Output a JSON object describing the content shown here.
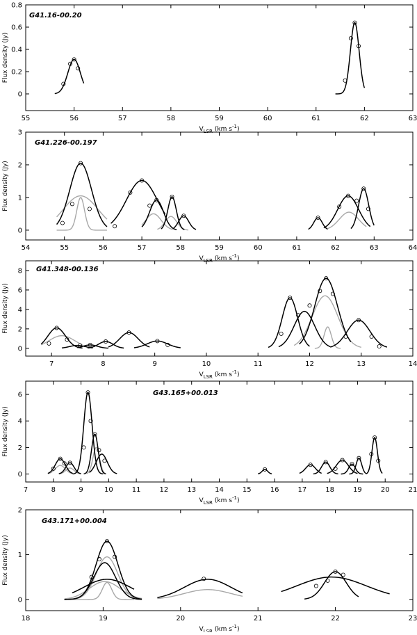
{
  "figure": {
    "ylabel": "Flux density (Jy)",
    "xlabel_main": "V",
    "xlabel_sub": "LSR",
    "xlabel_unit": "(km s",
    "xlabel_exp": "-1",
    "xlabel_close": ")"
  },
  "chart_data": [
    {
      "type": "line",
      "title": "G41.16-00.20",
      "xlim": [
        55,
        63
      ],
      "ylim": [
        -0.15,
        0.8
      ],
      "xticks": [
        55,
        56,
        57,
        58,
        59,
        60,
        61,
        62,
        63
      ],
      "yticks": [
        0,
        0.2,
        0.4,
        0.6,
        0.8
      ],
      "yticklabels": [
        "0",
        "0.2",
        "0.4",
        "0.6",
        "0.8"
      ],
      "total": [
        {
          "center": 56.0,
          "amp": 0.31,
          "sigma": 0.13,
          "range": [
            55.6,
            56.2
          ]
        },
        {
          "center": 61.8,
          "amp": 0.64,
          "sigma": 0.09,
          "range": [
            61.4,
            62.0
          ]
        }
      ],
      "components": [],
      "points": [
        [
          55.78,
          0.09
        ],
        [
          55.92,
          0.27
        ],
        [
          56.0,
          0.31
        ],
        [
          56.08,
          0.23
        ],
        [
          61.6,
          0.12
        ],
        [
          61.72,
          0.5
        ],
        [
          61.8,
          0.64
        ],
        [
          61.88,
          0.43
        ]
      ]
    },
    {
      "type": "line",
      "title": "G41.226-00.197",
      "xlim": [
        54,
        64
      ],
      "ylim": [
        -0.3,
        3
      ],
      "xticks": [
        54,
        55,
        56,
        57,
        58,
        59,
        60,
        61,
        62,
        63,
        64
      ],
      "yticks": [
        0,
        1,
        2,
        3
      ],
      "yticklabels": [
        "0",
        "1",
        "2",
        "3"
      ],
      "total": [
        {
          "center": 55.42,
          "amp": 2.05,
          "sigma": 0.28,
          "range": [
            54.8,
            56.1
          ]
        },
        {
          "center": 57.0,
          "amp": 1.52,
          "sigma": 0.4,
          "range": [
            56.2,
            57.6
          ]
        },
        {
          "center": 57.38,
          "amp": 0.92,
          "sigma": 0.18,
          "range": [
            57.0,
            57.9
          ]
        },
        {
          "center": 57.78,
          "amp": 1.02,
          "sigma": 0.11,
          "range": [
            57.5,
            58.1
          ]
        },
        {
          "center": 58.08,
          "amp": 0.44,
          "sigma": 0.13,
          "range": [
            57.8,
            58.4
          ]
        },
        {
          "center": 61.55,
          "amp": 0.38,
          "sigma": 0.11,
          "range": [
            61.3,
            61.8
          ]
        },
        {
          "center": 62.33,
          "amp": 1.05,
          "sigma": 0.27,
          "range": [
            61.7,
            62.9
          ]
        },
        {
          "center": 62.73,
          "amp": 1.27,
          "sigma": 0.13,
          "range": [
            62.4,
            63.0
          ]
        }
      ],
      "components": [
        {
          "center": 55.42,
          "amp": 1.05,
          "sigma": 0.45,
          "range": [
            54.8,
            56.1
          ]
        },
        {
          "center": 55.42,
          "amp": 1.0,
          "sigma": 0.1,
          "range": [
            54.8,
            56.1
          ]
        },
        {
          "center": 57.3,
          "amp": 0.5,
          "sigma": 0.2,
          "range": [
            57.0,
            57.8
          ]
        },
        {
          "center": 57.75,
          "amp": 0.42,
          "sigma": 0.15,
          "range": [
            57.4,
            58.2
          ]
        },
        {
          "center": 62.35,
          "amp": 0.55,
          "sigma": 0.25,
          "range": [
            61.8,
            62.8
          ]
        }
      ],
      "points": [
        [
          54.95,
          0.22
        ],
        [
          55.2,
          0.8
        ],
        [
          55.42,
          2.05
        ],
        [
          55.65,
          0.65
        ],
        [
          56.3,
          0.12
        ],
        [
          56.7,
          1.15
        ],
        [
          57.0,
          1.52
        ],
        [
          57.2,
          0.75
        ],
        [
          57.38,
          0.92
        ],
        [
          57.78,
          1.02
        ],
        [
          58.08,
          0.44
        ],
        [
          61.55,
          0.38
        ],
        [
          62.1,
          0.72
        ],
        [
          62.33,
          1.05
        ],
        [
          62.55,
          0.9
        ],
        [
          62.73,
          1.27
        ],
        [
          62.85,
          0.65
        ]
      ]
    },
    {
      "type": "line",
      "title": "G41.348-00.136",
      "xlim": [
        6.5,
        14
      ],
      "ylim": [
        -0.8,
        9
      ],
      "xticks": [
        7,
        8,
        9,
        10,
        11,
        12,
        13,
        14
      ],
      "yticks": [
        0,
        2,
        4,
        6,
        8
      ],
      "yticklabels": [
        "0",
        "2",
        "4",
        "6",
        "8"
      ],
      "total": [
        {
          "center": 7.1,
          "amp": 2.1,
          "sigma": 0.17,
          "range": [
            6.8,
            7.6
          ]
        },
        {
          "center": 7.5,
          "amp": 0.3,
          "sigma": 0.15,
          "range": [
            7.2,
            7.8
          ]
        },
        {
          "center": 7.75,
          "amp": 0.35,
          "sigma": 0.14,
          "range": [
            7.5,
            8.1
          ]
        },
        {
          "center": 8.05,
          "amp": 0.7,
          "sigma": 0.14,
          "range": [
            7.7,
            8.4
          ]
        },
        {
          "center": 8.5,
          "amp": 1.62,
          "sigma": 0.18,
          "range": [
            8.1,
            8.9
          ]
        },
        {
          "center": 9.05,
          "amp": 0.75,
          "sigma": 0.2,
          "range": [
            8.6,
            9.5
          ]
        },
        {
          "center": 11.62,
          "amp": 5.2,
          "sigma": 0.15,
          "range": [
            11.2,
            12.0
          ]
        },
        {
          "center": 11.9,
          "amp": 3.8,
          "sigma": 0.2,
          "range": [
            11.4,
            12.4
          ]
        },
        {
          "center": 12.32,
          "amp": 7.2,
          "sigma": 0.22,
          "range": [
            11.8,
            12.8
          ]
        },
        {
          "center": 12.95,
          "amp": 2.9,
          "sigma": 0.22,
          "range": [
            12.4,
            13.5
          ]
        }
      ],
      "components": [
        {
          "center": 7.2,
          "amp": 1.3,
          "sigma": 0.25,
          "range": [
            6.8,
            7.6
          ]
        },
        {
          "center": 12.3,
          "amp": 5.4,
          "sigma": 0.25,
          "range": [
            11.7,
            13.0
          ]
        },
        {
          "center": 12.35,
          "amp": 2.2,
          "sigma": 0.07,
          "range": [
            12.1,
            12.6
          ]
        }
      ],
      "points": [
        [
          6.95,
          0.5
        ],
        [
          7.1,
          2.1
        ],
        [
          7.3,
          0.9
        ],
        [
          7.55,
          0.3
        ],
        [
          7.75,
          0.35
        ],
        [
          8.05,
          0.7
        ],
        [
          8.5,
          1.62
        ],
        [
          9.05,
          0.75
        ],
        [
          9.25,
          0.35
        ],
        [
          11.45,
          1.5
        ],
        [
          11.62,
          5.2
        ],
        [
          11.78,
          3.4
        ],
        [
          12.0,
          4.4
        ],
        [
          12.2,
          5.9
        ],
        [
          12.32,
          7.2
        ],
        [
          12.45,
          5.6
        ],
        [
          12.7,
          1.2
        ],
        [
          12.95,
          2.9
        ],
        [
          13.2,
          1.2
        ],
        [
          13.35,
          0.2
        ]
      ]
    },
    {
      "type": "line",
      "title": "G43.165+00.013",
      "xlim": [
        7,
        21
      ],
      "ylim": [
        -0.6,
        7
      ],
      "xticks": [
        7,
        8,
        9,
        10,
        11,
        12,
        13,
        14,
        15,
        16,
        17,
        18,
        19,
        20,
        21
      ],
      "yticks": [
        0,
        2,
        4,
        6
      ],
      "yticklabels": [
        "0",
        "2",
        "4",
        "6"
      ],
      "total": [
        {
          "center": 8.25,
          "amp": 1.15,
          "sigma": 0.18,
          "range": [
            7.8,
            8.7
          ]
        },
        {
          "center": 8.6,
          "amp": 0.85,
          "sigma": 0.15,
          "range": [
            8.2,
            9.0
          ]
        },
        {
          "center": 9.25,
          "amp": 6.15,
          "sigma": 0.15,
          "range": [
            8.7,
            9.8
          ]
        },
        {
          "center": 9.5,
          "amp": 3.0,
          "sigma": 0.12,
          "range": [
            9.1,
            9.9
          ]
        },
        {
          "center": 9.75,
          "amp": 1.5,
          "sigma": 0.2,
          "range": [
            9.3,
            10.3
          ]
        },
        {
          "center": 15.65,
          "amp": 0.35,
          "sigma": 0.1,
          "range": [
            15.4,
            15.9
          ]
        },
        {
          "center": 17.3,
          "amp": 0.7,
          "sigma": 0.18,
          "range": [
            16.9,
            17.7
          ]
        },
        {
          "center": 17.85,
          "amp": 0.9,
          "sigma": 0.15,
          "range": [
            17.4,
            18.3
          ]
        },
        {
          "center": 18.45,
          "amp": 1.05,
          "sigma": 0.22,
          "range": [
            17.9,
            19.0
          ]
        },
        {
          "center": 18.8,
          "amp": 0.75,
          "sigma": 0.12,
          "range": [
            18.4,
            19.2
          ]
        },
        {
          "center": 19.05,
          "amp": 1.2,
          "sigma": 0.1,
          "range": [
            18.7,
            19.3
          ]
        },
        {
          "center": 19.62,
          "amp": 2.75,
          "sigma": 0.1,
          "range": [
            19.3,
            19.9
          ]
        }
      ],
      "components": [
        {
          "center": 8.25,
          "amp": 0.65,
          "sigma": 0.18,
          "range": [
            7.8,
            8.7
          ]
        },
        {
          "center": 9.55,
          "amp": 2.0,
          "sigma": 0.12,
          "range": [
            9.2,
            9.9
          ]
        },
        {
          "center": 8.6,
          "amp": 0.45,
          "sigma": 0.15,
          "range": [
            8.2,
            9.0
          ]
        }
      ],
      "points": [
        [
          8.0,
          0.4
        ],
        [
          8.25,
          1.15
        ],
        [
          8.4,
          0.8
        ],
        [
          8.6,
          0.85
        ],
        [
          9.1,
          2.0
        ],
        [
          9.25,
          6.15
        ],
        [
          9.35,
          4.0
        ],
        [
          9.5,
          3.0
        ],
        [
          9.65,
          1.8
        ],
        [
          9.85,
          1.0
        ],
        [
          15.65,
          0.35
        ],
        [
          17.3,
          0.7
        ],
        [
          17.85,
          0.9
        ],
        [
          18.2,
          0.4
        ],
        [
          18.45,
          1.05
        ],
        [
          18.8,
          0.75
        ],
        [
          19.05,
          1.2
        ],
        [
          19.5,
          1.5
        ],
        [
          19.62,
          2.75
        ],
        [
          19.75,
          1.0
        ]
      ]
    },
    {
      "type": "line",
      "title": "G43.171+00.004",
      "xlim": [
        18,
        23
      ],
      "ylim": [
        -0.25,
        2
      ],
      "xticks": [
        18,
        19,
        20,
        21,
        22,
        23
      ],
      "yticks": [
        0,
        1,
        2
      ],
      "yticklabels": [
        "0",
        "1",
        "2"
      ],
      "total": [
        {
          "center": 19.05,
          "amp": 1.3,
          "sigma": 0.14,
          "range": [
            18.5,
            19.5
          ]
        },
        {
          "center": 19.02,
          "amp": 0.82,
          "sigma": 0.14,
          "range": [
            18.5,
            19.5
          ]
        },
        {
          "center": 19.05,
          "amp": 0.45,
          "sigma": 0.3,
          "range": [
            18.6,
            19.4
          ]
        },
        {
          "center": 20.35,
          "amp": 0.45,
          "sigma": 0.3,
          "range": [
            19.7,
            20.8
          ]
        },
        {
          "center": 21.95,
          "amp": 0.5,
          "sigma": 0.45,
          "range": [
            21.3,
            22.7
          ]
        },
        {
          "center": 22.0,
          "amp": 0.62,
          "sigma": 0.14,
          "range": [
            21.6,
            22.3
          ]
        }
      ],
      "components": [
        {
          "center": 19.05,
          "amp": 0.95,
          "sigma": 0.14,
          "range": [
            18.5,
            19.5
          ]
        },
        {
          "center": 19.02,
          "amp": 0.4,
          "sigma": 0.2,
          "range": [
            18.5,
            19.5
          ]
        },
        {
          "center": 19.05,
          "amp": 0.38,
          "sigma": 0.06,
          "range": [
            18.6,
            19.4
          ]
        },
        {
          "center": 20.35,
          "amp": 0.22,
          "sigma": 0.3,
          "range": [
            19.7,
            20.8
          ]
        }
      ],
      "points": [
        [
          18.85,
          0.5
        ],
        [
          18.95,
          0.9
        ],
        [
          19.05,
          1.3
        ],
        [
          19.15,
          0.95
        ],
        [
          20.3,
          0.46
        ],
        [
          21.75,
          0.3
        ],
        [
          21.9,
          0.42
        ],
        [
          22.0,
          0.62
        ],
        [
          22.1,
          0.55
        ]
      ]
    }
  ]
}
